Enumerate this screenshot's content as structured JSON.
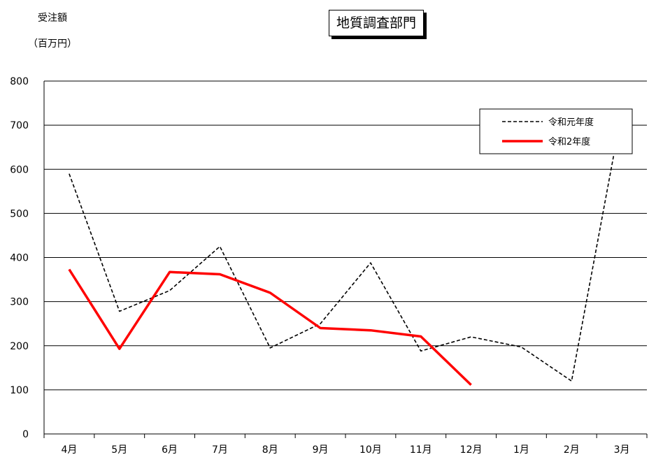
{
  "chart_data": {
    "type": "line",
    "title": "地質調査部門",
    "ylabel_lines": [
      "受注額",
      "（百万円）"
    ],
    "xlabel": "",
    "categories": [
      "4月",
      "5月",
      "6月",
      "7月",
      "8月",
      "9月",
      "10月",
      "11月",
      "12月",
      "1月",
      "2月",
      "3月"
    ],
    "ylim": [
      0,
      800
    ],
    "yticks": [
      0,
      100,
      200,
      300,
      400,
      500,
      600,
      700,
      800
    ],
    "grid": true,
    "legend_position": "top-right",
    "series": [
      {
        "name": "令和元年度",
        "color": "#000000",
        "style": "dashed",
        "values": [
          590,
          278,
          325,
          425,
          195,
          250,
          388,
          188,
          220,
          197,
          120,
          730
        ]
      },
      {
        "name": "令和2年度",
        "color": "#ff0000",
        "style": "solid",
        "values": [
          373,
          193,
          367,
          362,
          320,
          240,
          235,
          221,
          111,
          null,
          null,
          null
        ]
      }
    ]
  }
}
